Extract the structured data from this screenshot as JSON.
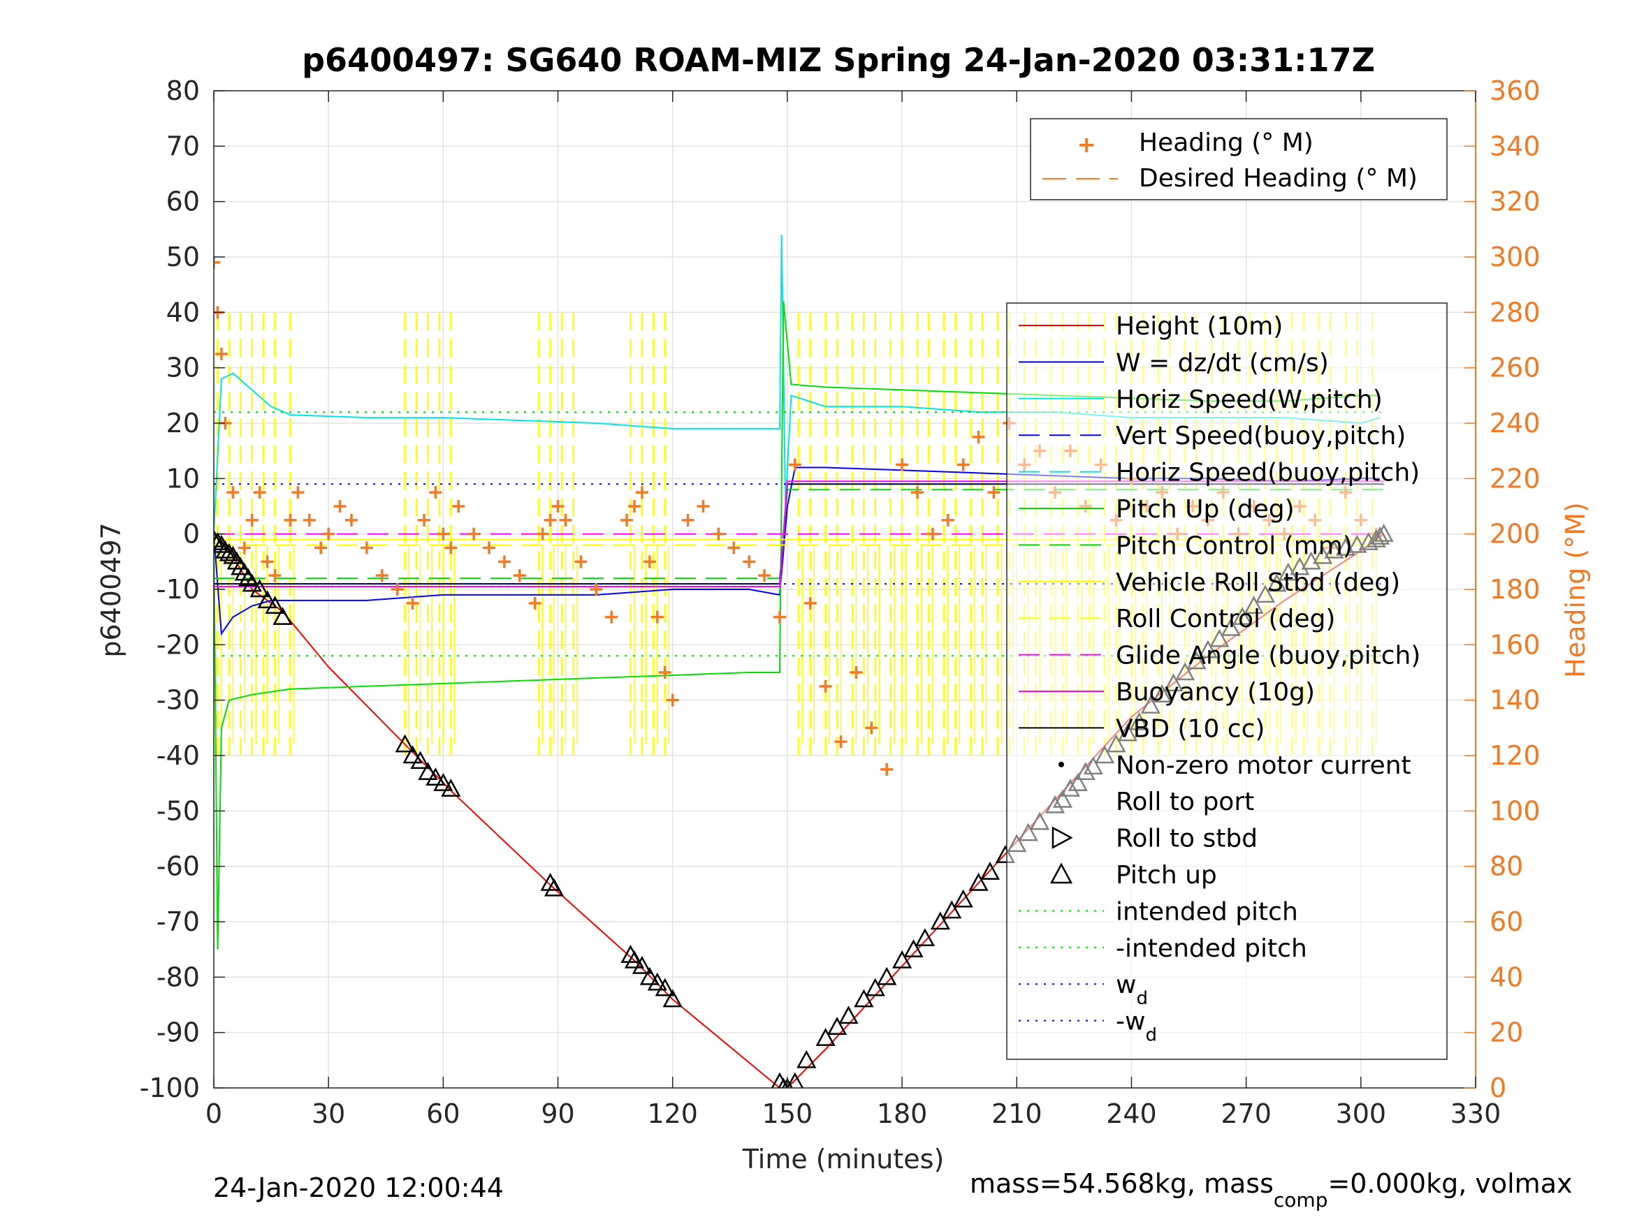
{
  "chart_data": {
    "type": "line",
    "title": "p6400497: SG640 ROAM-MIZ Spring 24-Jan-2020 03:31:17Z",
    "xlabel": "Time (minutes)",
    "ylabel_left": "p6400497",
    "ylabel_right": "Heading (°M)",
    "xlim": [
      0,
      330
    ],
    "ylim_left": [
      -100,
      80
    ],
    "ylim_right": [
      0,
      360
    ],
    "xticks": [
      0,
      30,
      60,
      90,
      120,
      150,
      180,
      210,
      240,
      270,
      300,
      330
    ],
    "yticks_left": [
      -100,
      -90,
      -80,
      -70,
      -60,
      -50,
      -40,
      -30,
      -20,
      -10,
      0,
      10,
      20,
      30,
      40,
      50,
      60,
      70,
      80
    ],
    "yticks_right": [
      0,
      20,
      40,
      60,
      80,
      100,
      120,
      140,
      160,
      180,
      200,
      220,
      240,
      260,
      280,
      300,
      320,
      340,
      360
    ],
    "grid": true,
    "footer_left": "24-Jan-2020 12:00:44",
    "footer_right": {
      "part1": "mass=54.568kg, mass",
      "sub": "comp",
      "part2": "=0.000kg, volmax"
    },
    "legend_heading": {
      "placement": "top-right",
      "entries": [
        {
          "label": "Heading (° M)",
          "color": "#f47920",
          "marker": "+"
        },
        {
          "label": "Desired Heading (° M)",
          "color": "#f47920",
          "line": "dashed"
        }
      ]
    },
    "legend_main": {
      "placement": "right",
      "entries": [
        {
          "label": "Height (10m)",
          "color": "#ff0000",
          "line": "solid"
        },
        {
          "label": "W = dz/dt (cm/s)",
          "color": "#0000ff",
          "line": "solid"
        },
        {
          "label": "Horiz Speed(W,pitch)",
          "color": "#00e5e5",
          "line": "solid"
        },
        {
          "label": "Vert Speed(buoy,pitch)",
          "color": "#0000ff",
          "line": "dashed"
        },
        {
          "label": "Horiz Speed(buoy,pitch)",
          "color": "#00e5e5",
          "line": "dashed"
        },
        {
          "label": "Pitch Up (deg)",
          "color": "#00e000",
          "line": "solid"
        },
        {
          "label": "Pitch Control (mm)",
          "color": "#00e000",
          "line": "dashed"
        },
        {
          "label": "Vehicle Roll Stbd (deg)",
          "color": "#ffff00",
          "line": "solid"
        },
        {
          "label": "Roll Control (deg)",
          "color": "#ffff00",
          "line": "dashed"
        },
        {
          "label": "Glide Angle (buoy,pitch)",
          "color": "#ff00ff",
          "line": "dashed"
        },
        {
          "label": "Buoyancy (10g)",
          "color": "#ff00ff",
          "line": "solid"
        },
        {
          "label": "VBD (10 cc)",
          "color": "#000000",
          "line": "solid"
        },
        {
          "label": "Non-zero motor current",
          "color": "#000000",
          "marker": "dot"
        },
        {
          "label": "Roll to port",
          "color": "#000000",
          "marker": "triangle-left"
        },
        {
          "label": "Roll to stbd",
          "color": "#000000",
          "marker": "triangle-right"
        },
        {
          "label": "Pitch up",
          "color": "#000000",
          "marker": "triangle-up"
        },
        {
          "label": "intended pitch",
          "color": "#00e000",
          "line": "dotted"
        },
        {
          "label": "-intended pitch",
          "color": "#00e000",
          "line": "dotted"
        },
        {
          "label": "w",
          "sub": "d",
          "color": "#0000ff",
          "line": "dotted"
        },
        {
          "label": "-w",
          "sub": "d",
          "color": "#0000ff",
          "line": "dotted"
        }
      ]
    },
    "series": [
      {
        "name": "Height (10m)",
        "axis": "left",
        "color": "#ff0000",
        "x": [
          0,
          5,
          10,
          18,
          30,
          50,
          63,
          89,
          110,
          120,
          148,
          150,
          160,
          180,
          200,
          220,
          240,
          260,
          280,
          300,
          306
        ],
        "y": [
          0,
          -4,
          -10,
          -14,
          -24,
          -38,
          -47,
          -64,
          -77,
          -84,
          -100,
          -100,
          -93,
          -78,
          -63,
          -48,
          -33,
          -22,
          -12,
          -3,
          0
        ]
      },
      {
        "name": "W = dz/dt (cm/s)",
        "axis": "left",
        "color": "#0000ff",
        "x": [
          0,
          2,
          5,
          10,
          15,
          20,
          40,
          60,
          80,
          100,
          120,
          140,
          148,
          150,
          152,
          160,
          180,
          200,
          220,
          240,
          260,
          280,
          300,
          305
        ],
        "y": [
          0,
          -18,
          -15,
          -13,
          -12,
          -12,
          -12,
          -11,
          -11,
          -11,
          -10,
          -10,
          -11,
          5,
          12,
          12,
          11.5,
          11,
          10.5,
          10,
          10,
          9.5,
          10,
          10
        ]
      },
      {
        "name": "Horiz Speed(W,pitch)",
        "axis": "left",
        "color": "#00e5e5",
        "x": [
          0,
          2,
          5,
          10,
          15,
          20,
          40,
          60,
          80,
          100,
          120,
          140,
          148,
          148.5,
          149.5,
          151,
          160,
          180,
          200,
          220,
          240,
          260,
          280,
          300,
          305
        ],
        "y": [
          0,
          28,
          29,
          26,
          23,
          21.5,
          21,
          21,
          20.5,
          20,
          19,
          19,
          19,
          54,
          5,
          25,
          23,
          23,
          22,
          22,
          21,
          21,
          21,
          20,
          21
        ]
      },
      {
        "name": "Pitch Up (deg)",
        "axis": "left",
        "color": "#00e000",
        "x": [
          0,
          1,
          2,
          4,
          10,
          20,
          40,
          60,
          80,
          100,
          120,
          140,
          148,
          149,
          151,
          160,
          180,
          200,
          220,
          240,
          260,
          280,
          300,
          305
        ],
        "y": [
          0,
          -75,
          -35,
          -30,
          -29,
          -28,
          -27.5,
          -27,
          -26.5,
          -26,
          -25.5,
          -25,
          -25,
          42,
          27,
          26.5,
          26,
          25.5,
          25,
          24.5,
          24,
          24,
          25,
          25
        ]
      },
      {
        "name": "Pitch Control (mm)",
        "axis": "left",
        "color": "#00e000",
        "x": [
          0,
          148,
          150,
          306
        ],
        "y": [
          -8,
          -8,
          8,
          8
        ]
      },
      {
        "name": "VBD (10 cc)",
        "axis": "left",
        "color": "#000000",
        "x": [
          0,
          148,
          150,
          306
        ],
        "y": [
          -9,
          -9,
          9,
          9
        ]
      },
      {
        "name": "Buoyancy (10g)",
        "axis": "left",
        "color": "#ff00ff",
        "x": [
          0,
          148,
          150,
          306
        ],
        "y": [
          -9.5,
          -9.5,
          9.5,
          9.5
        ]
      },
      {
        "name": "Glide Angle (buoy,pitch)",
        "axis": "left",
        "color": "#ff00ff",
        "x": [
          0,
          306
        ],
        "y": [
          0,
          0
        ]
      },
      {
        "name": "intended pitch",
        "axis": "left",
        "color": "#00e000",
        "x": [
          0,
          306
        ],
        "y": [
          22,
          22
        ]
      },
      {
        "name": "-intended pitch",
        "axis": "left",
        "color": "#00e000",
        "x": [
          0,
          306
        ],
        "y": [
          -22,
          -22
        ]
      },
      {
        "name": "w",
        "axis": "left",
        "color": "#0000ff",
        "x": [
          0,
          306
        ],
        "y": [
          9,
          9
        ]
      },
      {
        "name": "-w",
        "axis": "left",
        "color": "#0000ff",
        "x": [
          0,
          306
        ],
        "y": [
          -9,
          -9
        ]
      },
      {
        "name": "Desired Heading (° M)",
        "axis": "right",
        "color": "#f47920",
        "x": [
          0,
          306
        ],
        "y": [
          196,
          196
        ]
      },
      {
        "name": "Heading (° M)",
        "axis": "right",
        "color": "#f47920",
        "x": [
          0,
          1,
          2,
          3,
          5,
          8,
          10,
          12,
          14,
          16,
          20,
          22,
          25,
          28,
          30,
          33,
          36,
          40,
          44,
          48,
          52,
          55,
          58,
          60,
          62,
          64,
          68,
          72,
          76,
          80,
          84,
          86,
          88,
          90,
          92,
          96,
          100,
          104,
          108,
          110,
          112,
          114,
          116,
          118,
          120,
          124,
          128,
          132,
          136,
          140,
          144,
          148,
          152,
          156,
          160,
          164,
          168,
          172,
          176,
          180,
          184,
          188,
          192,
          196,
          200,
          204,
          208,
          212,
          216,
          220,
          224,
          228,
          232,
          236,
          240,
          244,
          248,
          252,
          256,
          260,
          264,
          268,
          272,
          276,
          280,
          284,
          288,
          292,
          296,
          300,
          304
        ],
        "y": [
          298,
          280,
          265,
          240,
          215,
          195,
          205,
          215,
          190,
          185,
          205,
          215,
          205,
          195,
          200,
          210,
          205,
          195,
          185,
          180,
          175,
          205,
          215,
          200,
          195,
          210,
          200,
          195,
          190,
          185,
          175,
          200,
          205,
          210,
          205,
          190,
          180,
          170,
          205,
          210,
          215,
          190,
          170,
          150,
          140,
          205,
          210,
          200,
          195,
          190,
          185,
          170,
          225,
          175,
          145,
          125,
          150,
          130,
          115,
          225,
          215,
          200,
          205,
          225,
          235,
          215,
          240,
          225,
          230,
          215,
          230,
          210,
          225,
          205,
          220,
          210,
          215,
          200,
          210,
          205,
          215,
          200,
          210,
          205,
          200,
          210,
          205,
          195,
          215,
          205,
          200
        ]
      },
      {
        "name": "Vehicle Roll Stbd (deg)",
        "axis": "left",
        "color": "#ffff00",
        "x": [
          0,
          306
        ],
        "y": [
          -1,
          -1
        ]
      },
      {
        "name": "Roll Control (deg)",
        "axis": "left",
        "color": "#ffff00",
        "x": [
          0,
          306
        ],
        "y": [
          -2,
          -2
        ]
      }
    ],
    "markers_pitch_up": {
      "x": [
        0,
        1,
        2,
        3,
        4,
        5,
        6,
        7,
        8,
        9,
        10,
        12,
        14,
        16,
        18,
        50,
        52,
        54,
        56,
        58,
        60,
        62,
        88,
        89,
        109,
        110,
        112,
        114,
        116,
        118,
        120,
        148,
        149,
        150,
        152,
        155,
        160,
        163,
        166,
        170,
        173,
        176,
        180,
        183,
        186,
        190,
        193,
        196,
        200,
        203,
        207,
        210,
        213,
        216,
        220,
        222,
        224,
        226,
        228,
        230,
        233,
        236,
        239,
        242,
        245,
        248,
        251,
        254,
        257,
        260,
        263,
        266,
        269,
        272,
        275,
        278,
        281,
        284,
        287,
        290,
        293,
        296,
        299,
        302,
        304,
        305,
        306
      ],
      "y": [
        -1,
        -1.5,
        -2,
        -3,
        -3.5,
        -4,
        -5,
        -6,
        -7,
        -8,
        -9,
        -10,
        -12,
        -13,
        -15,
        -38,
        -40,
        -41,
        -43,
        -44,
        -45,
        -46,
        -63,
        -64,
        -76,
        -77,
        -78,
        -80,
        -81,
        -82,
        -84,
        -99,
        -100,
        -100,
        -99,
        -95,
        -91,
        -89,
        -87,
        -84,
        -82,
        -80,
        -77,
        -75,
        -73,
        -70,
        -68,
        -66,
        -63,
        -61,
        -58,
        -56,
        -54,
        -52,
        -49,
        -48,
        -46,
        -45,
        -43,
        -42,
        -40,
        -38,
        -36,
        -34,
        -31,
        -29,
        -27,
        -25,
        -23,
        -21,
        -19,
        -17,
        -15,
        -13,
        -11,
        -9,
        -7,
        -6,
        -5,
        -4,
        -3,
        -2.5,
        -2,
        -1.5,
        -1,
        -0.5,
        0
      ]
    },
    "roll_control_spikes_x": [
      1,
      4,
      7,
      10,
      13,
      16,
      20,
      50,
      53,
      56,
      59,
      62,
      85,
      88,
      91,
      94,
      109,
      112,
      115,
      118,
      153,
      156,
      160,
      163,
      167,
      170,
      173,
      177,
      180,
      184,
      187,
      191,
      194,
      198,
      201,
      205,
      208,
      212,
      215,
      219,
      222,
      226,
      229,
      233,
      236,
      240,
      243,
      247,
      250,
      254,
      257,
      261,
      264,
      268,
      271,
      275,
      278,
      282,
      285,
      289,
      292,
      296,
      299,
      303
    ]
  }
}
